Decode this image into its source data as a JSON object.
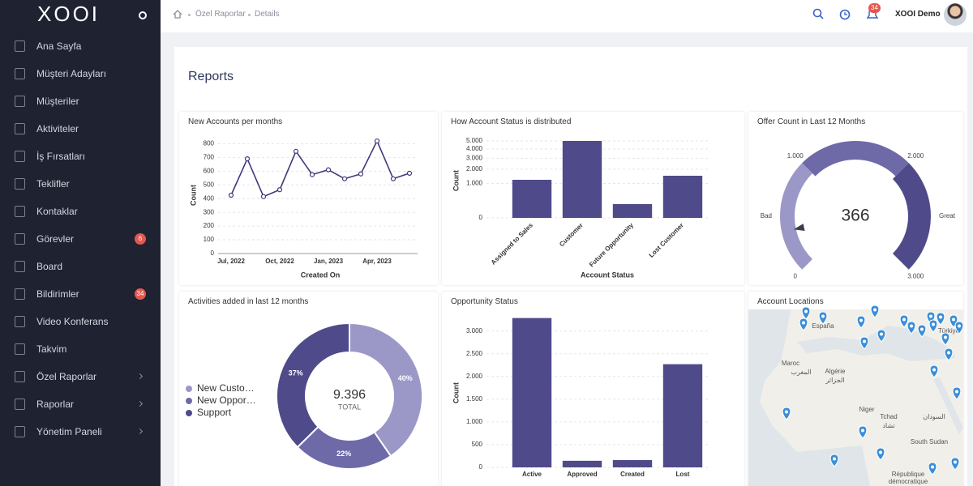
{
  "sidebar": {
    "logo": "XOOI",
    "items": [
      {
        "label": "Ana Sayfa"
      },
      {
        "label": "Müşteri Adayları"
      },
      {
        "label": "Müşteriler"
      },
      {
        "label": "Aktiviteler"
      },
      {
        "label": "İş Fırsatları"
      },
      {
        "label": "Teklifler"
      },
      {
        "label": "Kontaklar"
      },
      {
        "label": "Görevler",
        "badge": 6
      },
      {
        "label": "Board"
      },
      {
        "label": "Bildirimler",
        "badge": 34
      },
      {
        "label": "Video Konferans"
      },
      {
        "label": "Takvim"
      },
      {
        "label": "Özel Raporlar",
        "expandable": true
      },
      {
        "label": "Raporlar",
        "expandable": true
      },
      {
        "label": "Yönetim Paneli",
        "expandable": true
      }
    ]
  },
  "topbar": {
    "breadcrumb": [
      "Özel Raporlar",
      "Details"
    ],
    "notifications": 34,
    "user": "XOOI Demo"
  },
  "page_title": "Reports",
  "chart_data": [
    {
      "type": "line",
      "title": "New Accounts per months",
      "ylabel": "Count",
      "xlabel": "Created On",
      "categories": [
        "Jul, 2022",
        null,
        null,
        "Oct, 2022",
        null,
        null,
        "Jan, 2023",
        null,
        null,
        "Apr, 2023",
        null,
        null
      ],
      "values": [
        425,
        690,
        415,
        465,
        745,
        575,
        610,
        545,
        580,
        820,
        545,
        585
      ],
      "color": "#3f3a78",
      "ylim": [
        0,
        850
      ],
      "yticks": [
        0,
        100,
        200,
        300,
        400,
        500,
        600,
        700,
        800
      ],
      "grid": true
    },
    {
      "type": "bar",
      "title": "How Account Status is distributed",
      "ylabel": "Count",
      "xlabel": "Account Status",
      "categories": [
        "Assigned to Sales",
        "Customer",
        "Future Opportunity",
        "Lost Customer"
      ],
      "values": [
        1225,
        5000,
        160,
        1500
      ],
      "color": "#4f4a8a",
      "scale": "sqrt",
      "ylim": [
        0,
        5000
      ],
      "yticks": [
        0,
        {
          "value": 1000,
          "label": "1.000"
        },
        {
          "value": 2000,
          "label": "2.000"
        },
        {
          "value": 3000,
          "label": "3.000"
        },
        {
          "value": 4000,
          "label": "4.000"
        },
        {
          "value": 5000,
          "label": "5.000"
        }
      ],
      "grid": true
    },
    {
      "type": "gauge",
      "title": "Offer Count in Last 12 Months",
      "value": 366,
      "ylim": [
        0,
        3000
      ],
      "yticks": [
        0,
        {
          "value": 1000,
          "label": "1.000"
        },
        {
          "value": 2000,
          "label": "2.000"
        },
        {
          "value": 3000,
          "label": "3.000"
        }
      ],
      "bands": [
        {
          "from": 0,
          "to": 1000,
          "label": "Bad",
          "color": "#9b98c8"
        },
        {
          "from": 1000,
          "to": 2000,
          "color": "#6e6aa8"
        },
        {
          "from": 2000,
          "to": 3000,
          "label": "Great",
          "color": "#4f4a8a"
        }
      ]
    },
    {
      "type": "pie",
      "donut": true,
      "title": "Activities added in last 12 months",
      "categories": [
        "New Custo…",
        "New Oppor…",
        "Support"
      ],
      "values": [
        40,
        22,
        37
      ],
      "value_labels": [
        "40%",
        "22%",
        "37%"
      ],
      "colors": [
        "#9b98c8",
        "#6e6aa8",
        "#4f4a8a"
      ],
      "total": {
        "value": 9396,
        "label": "9.396"
      },
      "total_caption": "TOTAL",
      "legend": "left"
    },
    {
      "type": "bar",
      "title": "Opportunity Status",
      "ylabel": "Count",
      "categories": [
        "Active",
        "Approved",
        "Created",
        "Lost"
      ],
      "values": [
        3285,
        145,
        160,
        2270
      ],
      "color": "#4f4a8a",
      "ylim": [
        0,
        3350
      ],
      "yticks": [
        0,
        500,
        {
          "value": 1000,
          "label": "1.000"
        },
        {
          "value": 1500,
          "label": "1.500"
        },
        {
          "value": 2000,
          "label": "2.000"
        },
        {
          "value": 2500,
          "label": "2.500"
        },
        {
          "value": 3000,
          "label": "3.000"
        }
      ],
      "grid": true
    }
  ],
  "map": {
    "title": "Account Locations",
    "labels": [
      "España",
      "Türkiye",
      "Maroc",
      "المغرب",
      "Algérie",
      "الجزائر",
      "Niger",
      "Tchad",
      "تشاد",
      "السودان",
      "South Sudan",
      "République",
      "démocratique"
    ]
  }
}
